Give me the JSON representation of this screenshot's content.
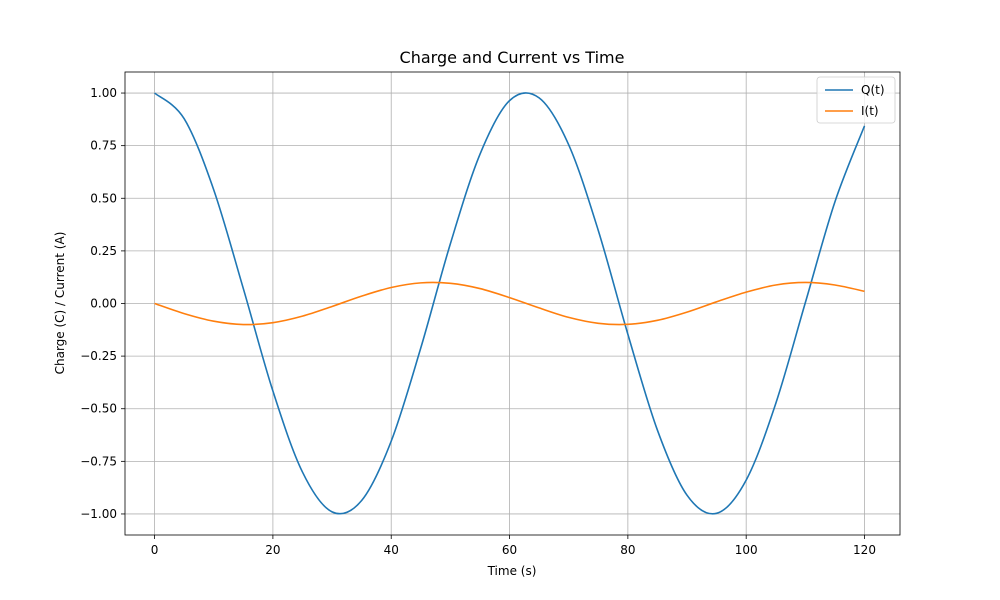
{
  "chart_data": {
    "type": "line",
    "title": "Charge and Current vs Time",
    "xlabel": "Time (s)",
    "ylabel": "Charge (C) / Current (A)",
    "xlim": [
      -5,
      126
    ],
    "ylim": [
      -1.1,
      1.1
    ],
    "xticks": [
      0,
      20,
      40,
      60,
      80,
      100,
      120
    ],
    "xtick_labels": [
      "0",
      "20",
      "40",
      "60",
      "80",
      "100",
      "120"
    ],
    "yticks": [
      1.0,
      0.75,
      0.5,
      0.25,
      0.0,
      -0.25,
      -0.5,
      -0.75,
      -1.0
    ],
    "ytick_labels": [
      "1.00",
      "0.75",
      "0.50",
      "0.25",
      "0.00",
      "−0.25",
      "−0.50",
      "−0.75",
      "−1.00"
    ],
    "grid": true,
    "legend_position": "top-right",
    "series": [
      {
        "name": "Q(t)",
        "color": "#1f77b4",
        "x": [
          0,
          5,
          10,
          15,
          20,
          25,
          30,
          35,
          40,
          45,
          50,
          55,
          60,
          65,
          70,
          75,
          80,
          85,
          90,
          95,
          100,
          105,
          110,
          115,
          120
        ],
        "y": [
          1.0,
          0.878,
          0.54,
          0.071,
          -0.416,
          -0.801,
          -0.99,
          -0.936,
          -0.654,
          -0.211,
          0.284,
          0.709,
          0.964,
          0.977,
          0.754,
          0.347,
          -0.146,
          -0.602,
          -0.911,
          -0.997,
          -0.839,
          -0.475,
          0.004,
          0.483,
          0.844
        ]
      },
      {
        "name": "I(t)",
        "color": "#ff7f0e",
        "x": [
          0,
          5,
          10,
          15,
          20,
          25,
          30,
          35,
          40,
          45,
          50,
          55,
          60,
          65,
          70,
          75,
          80,
          85,
          90,
          95,
          100,
          105,
          110,
          115,
          120
        ],
        "y": [
          0.0,
          -0.048,
          -0.084,
          -0.1,
          -0.091,
          -0.06,
          -0.014,
          0.035,
          0.076,
          0.098,
          0.096,
          0.071,
          0.028,
          -0.021,
          -0.066,
          -0.094,
          -0.099,
          -0.08,
          -0.041,
          0.008,
          0.054,
          0.088,
          0.1,
          0.088,
          0.058
        ]
      }
    ]
  }
}
